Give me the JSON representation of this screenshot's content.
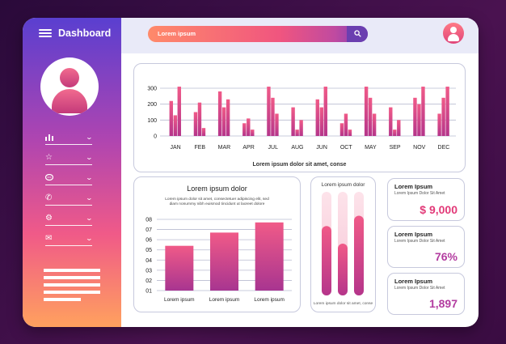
{
  "header": {
    "title": "Dashboard"
  },
  "search": {
    "text": "Lorem ipsum"
  },
  "sidebar": {
    "items": [
      {
        "icon": "bar-chart-icon",
        "glyph": "▮▮▮"
      },
      {
        "icon": "star-icon",
        "glyph": "☆"
      },
      {
        "icon": "chat-icon",
        "glyph": "◌"
      },
      {
        "icon": "phone-icon",
        "glyph": "✆"
      },
      {
        "icon": "gear-icon",
        "glyph": "⚙"
      },
      {
        "icon": "mail-icon",
        "glyph": "✉"
      }
    ]
  },
  "monthly_chart": {
    "caption": "Lorem ipsum dolor sit amet, conse",
    "chart_data": {
      "type": "bar",
      "categories": [
        "JAN",
        "FEB",
        "MAR",
        "APR",
        "JUL",
        "AUG",
        "JUN",
        "OCT",
        "MAY",
        "SEP",
        "NOV",
        "DEC"
      ],
      "series": [
        {
          "values": [
            220,
            150,
            280,
            80,
            310,
            180,
            230,
            80,
            310,
            180,
            240,
            140
          ]
        },
        {
          "values": [
            130,
            210,
            180,
            110,
            240,
            40,
            180,
            140,
            240,
            40,
            200,
            240
          ]
        },
        {
          "values": [
            310,
            50,
            230,
            40,
            140,
            100,
            310,
            40,
            140,
            100,
            310,
            310
          ]
        }
      ],
      "ylim": [
        0,
        300
      ],
      "yticks": [
        "0",
        "100",
        "200",
        "300"
      ]
    }
  },
  "level_chart": {
    "title": "Lorem ipsum dolor",
    "subtitle_lines": [
      "Lorem ipsum dolor sit amet, consectetuer adipiscing elit, sed",
      "diam nonummy nibh euismod tincidunt ut laoreet dolore"
    ],
    "chart_data": {
      "type": "bar",
      "categories": [
        "Lorem ipsum",
        "Lorem ipsum",
        "Lorem ipsum"
      ],
      "values": [
        5.4,
        6.7,
        7.7
      ],
      "ylim": [
        1,
        8
      ],
      "yticks": [
        "01",
        "02",
        "03",
        "04",
        "05",
        "06",
        "07",
        "08"
      ]
    }
  },
  "progress_panel": {
    "title": "Lorem ipsum dolor",
    "caption": "Lorem ipsum dolor sit amet, conse",
    "chart_data": {
      "type": "bar",
      "values": [
        0.67,
        0.5,
        0.77
      ]
    }
  },
  "stats": [
    {
      "title": "Lorem Ipsum",
      "subtitle": "Lorem Ipsum Dolor Sit Amet",
      "value": "$ 9,000"
    },
    {
      "title": "Lorem Ipsum",
      "subtitle": "Lorem Ipsum Dolor Sit Amet",
      "value": "76%"
    },
    {
      "title": "Lorem Ipsum",
      "subtitle": "Lorem Ipsum Dolor Sit Amet",
      "value": "1,897"
    }
  ],
  "colors": {
    "accent": "#e23a78",
    "purple": "#6b3fb0",
    "bar_top": "#f05a88",
    "bar_bottom": "#b5358a"
  }
}
